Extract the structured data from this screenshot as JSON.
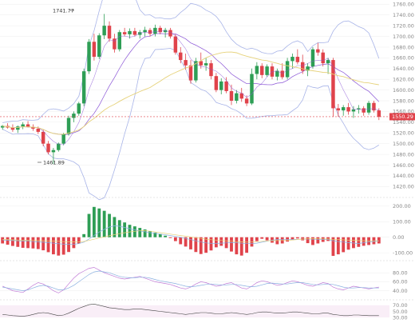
{
  "colors": {
    "up": "#2e9e55",
    "down": "#e0434b",
    "grid": "#eeeeee",
    "bb": "#a8b4e8",
    "ma_short": "#8a55d6",
    "ma_long": "#e6d27a",
    "price_tag": "#e0434b",
    "kdj_k": "#c07ad6",
    "kdj_d": "#8ab0e0",
    "kdj_j": "#e6c36a"
  },
  "annotations": {
    "high_label": "1741.77",
    "low_label": "1461.89"
  },
  "current_price": "1550.29",
  "chart_data": [
    {
      "type": "candlestick",
      "title": "",
      "ylim": [
        1410,
        1765
      ],
      "y_ticks": [
        "1760.00",
        "1740.00",
        "1720.00",
        "1700.00",
        "1680.00",
        "1660.00",
        "1640.00",
        "1620.00",
        "1600.00",
        "1580.00",
        "1560.00",
        "1540.00",
        "1520.00",
        "1500.00",
        "1480.00",
        "1460.00",
        "1440.00",
        "1420.00"
      ],
      "candles": [
        [
          1530,
          1535,
          1526,
          1533
        ],
        [
          1533,
          1538,
          1528,
          1530
        ],
        [
          1530,
          1536,
          1522,
          1526
        ],
        [
          1526,
          1534,
          1520,
          1532
        ],
        [
          1532,
          1540,
          1527,
          1536
        ],
        [
          1536,
          1542,
          1530,
          1531
        ],
        [
          1531,
          1536,
          1524,
          1528
        ],
        [
          1528,
          1532,
          1518,
          1522
        ],
        [
          1522,
          1526,
          1495,
          1500
        ],
        [
          1500,
          1505,
          1480,
          1484
        ],
        [
          1484,
          1492,
          1462,
          1488
        ],
        [
          1488,
          1502,
          1485,
          1500
        ],
        [
          1500,
          1520,
          1497,
          1518
        ],
        [
          1518,
          1552,
          1515,
          1548
        ],
        [
          1548,
          1560,
          1540,
          1556
        ],
        [
          1556,
          1578,
          1552,
          1575
        ],
        [
          1575,
          1640,
          1570,
          1635
        ],
        [
          1635,
          1695,
          1630,
          1690
        ],
        [
          1690,
          1705,
          1655,
          1662
        ],
        [
          1662,
          1706,
          1658,
          1702
        ],
        [
          1702,
          1742,
          1695,
          1720
        ],
        [
          1720,
          1728,
          1690,
          1696
        ],
        [
          1696,
          1705,
          1670,
          1676
        ],
        [
          1676,
          1712,
          1672,
          1708
        ],
        [
          1708,
          1716,
          1700,
          1704
        ],
        [
          1704,
          1715,
          1696,
          1710
        ],
        [
          1710,
          1716,
          1700,
          1703
        ],
        [
          1703,
          1712,
          1696,
          1708
        ],
        [
          1708,
          1718,
          1700,
          1712
        ],
        [
          1712,
          1716,
          1700,
          1705
        ],
        [
          1705,
          1722,
          1700,
          1716
        ],
        [
          1716,
          1720,
          1704,
          1708
        ],
        [
          1708,
          1716,
          1698,
          1712
        ],
        [
          1712,
          1716,
          1696,
          1700
        ],
        [
          1700,
          1704,
          1666,
          1670
        ],
        [
          1670,
          1680,
          1650,
          1656
        ],
        [
          1656,
          1668,
          1638,
          1646
        ],
        [
          1646,
          1656,
          1612,
          1618
        ],
        [
          1618,
          1660,
          1614,
          1654
        ],
        [
          1654,
          1670,
          1640,
          1646
        ],
        [
          1646,
          1660,
          1636,
          1650
        ],
        [
          1650,
          1656,
          1620,
          1626
        ],
        [
          1626,
          1632,
          1596,
          1600
        ],
        [
          1600,
          1622,
          1592,
          1616
        ],
        [
          1616,
          1624,
          1594,
          1598
        ],
        [
          1598,
          1610,
          1572,
          1580
        ],
        [
          1580,
          1600,
          1575,
          1594
        ],
        [
          1594,
          1604,
          1578,
          1584
        ],
        [
          1584,
          1590,
          1570,
          1575
        ],
        [
          1575,
          1640,
          1572,
          1630
        ],
        [
          1630,
          1652,
          1620,
          1645
        ],
        [
          1645,
          1650,
          1622,
          1628
        ],
        [
          1628,
          1648,
          1625,
          1644
        ],
        [
          1644,
          1650,
          1620,
          1625
        ],
        [
          1625,
          1640,
          1618,
          1636
        ],
        [
          1636,
          1650,
          1620,
          1624
        ],
        [
          1624,
          1660,
          1620,
          1654
        ],
        [
          1654,
          1668,
          1640,
          1662
        ],
        [
          1662,
          1676,
          1648,
          1652
        ],
        [
          1652,
          1666,
          1630,
          1636
        ],
        [
          1636,
          1650,
          1626,
          1644
        ],
        [
          1644,
          1680,
          1640,
          1676
        ],
        [
          1676,
          1688,
          1664,
          1670
        ],
        [
          1670,
          1676,
          1644,
          1650
        ],
        [
          1650,
          1660,
          1630,
          1656
        ],
        [
          1656,
          1660,
          1550,
          1566
        ],
        [
          1566,
          1574,
          1550,
          1562
        ],
        [
          1562,
          1572,
          1552,
          1568
        ],
        [
          1568,
          1576,
          1554,
          1560
        ],
        [
          1560,
          1570,
          1548,
          1564
        ],
        [
          1564,
          1572,
          1556,
          1566
        ],
        [
          1566,
          1570,
          1552,
          1558
        ],
        [
          1558,
          1580,
          1554,
          1576
        ],
        [
          1576,
          1580,
          1558,
          1562
        ],
        [
          1562,
          1566,
          1544,
          1550
        ]
      ],
      "overlays": [
        "bollinger",
        "ma_short",
        "ma_long"
      ]
    },
    {
      "type": "bar",
      "title": "",
      "ylim": [
        -130,
        230
      ],
      "y_ticks": [
        "200.00",
        "100.00",
        "0.00",
        "-100.00"
      ],
      "values": [
        -40,
        -48,
        -56,
        -62,
        -68,
        -70,
        -72,
        -76,
        -84,
        -96,
        -110,
        -118,
        -112,
        -95,
        -70,
        -40,
        20,
        150,
        195,
        185,
        170,
        150,
        130,
        110,
        95,
        80,
        70,
        60,
        50,
        40,
        30,
        20,
        10,
        -5,
        -25,
        -45,
        -60,
        -78,
        -95,
        -108,
        -100,
        -85,
        -65,
        -55,
        -70,
        -92,
        -110,
        -118,
        -100,
        -60,
        -25,
        -10,
        -20,
        -35,
        -45,
        -40,
        -28,
        -18,
        -8,
        -20,
        -38,
        -50,
        -40,
        -30,
        -24,
        -120,
        -110,
        -96,
        -80,
        -70,
        -62,
        -55,
        -50,
        -45,
        -40
      ],
      "lines": [
        "signal_a",
        "signal_b"
      ]
    },
    {
      "type": "line",
      "title": "",
      "ylim": [
        25,
        100
      ],
      "y_ticks": [
        "80.00",
        "60.00",
        "40.00"
      ],
      "series": [
        {
          "values": [
            50,
            45,
            40,
            38,
            36,
            44,
            52,
            58,
            55,
            48,
            40,
            35,
            42,
            55,
            68,
            78,
            84,
            90,
            92,
            86,
            80,
            76,
            72,
            68,
            66,
            68,
            70,
            72,
            68,
            64,
            60,
            58,
            56,
            54,
            50,
            46,
            44,
            48,
            55,
            60,
            58,
            54,
            50,
            52,
            56,
            58,
            52,
            46,
            44,
            50,
            58,
            62,
            60,
            56,
            52,
            54,
            58,
            62,
            60,
            56,
            52,
            50,
            54,
            58,
            56,
            48,
            44,
            42,
            46,
            50,
            48,
            46,
            44,
            46,
            48
          ]
        },
        {
          "values": [
            48,
            46,
            44,
            42,
            40,
            42,
            46,
            50,
            52,
            50,
            46,
            42,
            42,
            46,
            52,
            60,
            68,
            76,
            82,
            84,
            82,
            80,
            76,
            72,
            70,
            69,
            69,
            70,
            70,
            68,
            65,
            62,
            60,
            58,
            56,
            53,
            50,
            49,
            50,
            52,
            54,
            55,
            54,
            53,
            53,
            54,
            54,
            52,
            50,
            49,
            50,
            53,
            56,
            57,
            56,
            55,
            55,
            57,
            58,
            58,
            56,
            54,
            53,
            54,
            55,
            54,
            51,
            48,
            46,
            46,
            47,
            47,
            46,
            46,
            46
          ]
        }
      ]
    },
    {
      "type": "line",
      "title": "",
      "ylim": [
        25,
        80
      ],
      "y_ticks": [
        "70.00",
        "50.00",
        "30.00"
      ],
      "series": [
        {
          "values": [
            40,
            38,
            36,
            35,
            34,
            36,
            40,
            44,
            46,
            44,
            40,
            36,
            38,
            44,
            52,
            60,
            66,
            72,
            74,
            70,
            66,
            62,
            60,
            58,
            56,
            56,
            58,
            58,
            56,
            54,
            52,
            50,
            48,
            46,
            44,
            42,
            40,
            42,
            44,
            46,
            46,
            44,
            42,
            42,
            44,
            46,
            44,
            42,
            40,
            42,
            46,
            48,
            48,
            46,
            44,
            44,
            46,
            48,
            48,
            46,
            44,
            42,
            42,
            44,
            44,
            40,
            38,
            36,
            36,
            38,
            38,
            37,
            36,
            36,
            36
          ]
        }
      ]
    }
  ]
}
